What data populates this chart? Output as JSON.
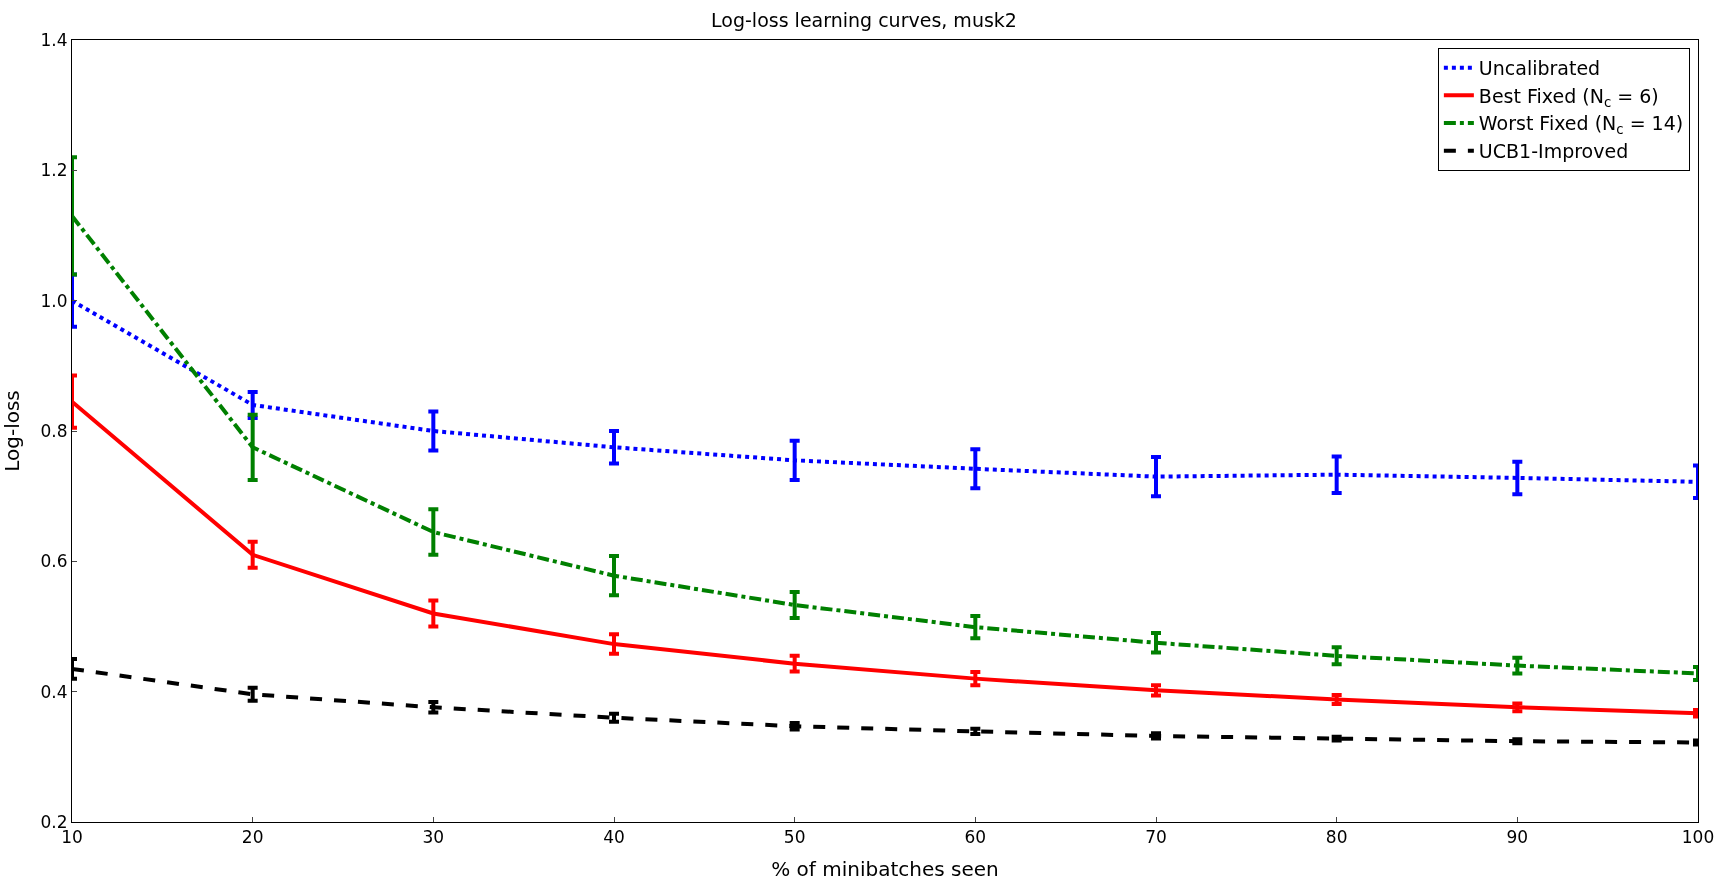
{
  "chart_data": {
    "type": "line",
    "title": "Log-loss learning curves, musk2",
    "xlabel": "% of minibatches seen",
    "ylabel": "Log-loss",
    "x": [
      10,
      20,
      30,
      40,
      50,
      60,
      70,
      80,
      90,
      100
    ],
    "xlim": [
      10,
      100
    ],
    "xticks": [
      10,
      20,
      30,
      40,
      50,
      60,
      70,
      80,
      90,
      100
    ],
    "ylim": [
      0.2,
      1.4
    ],
    "yticks": [
      0.2,
      0.4,
      0.6,
      0.8,
      {
        "value": 1,
        "label": "1.0"
      },
      1.2,
      1.4
    ],
    "grid": false,
    "legend": "top right",
    "series": [
      {
        "name": "Uncalibrated",
        "color": "#0000ff",
        "line_style": "dotted",
        "values": [
          1.0,
          0.84,
          0.8,
          0.775,
          0.755,
          0.742,
          0.73,
          0.733,
          0.728,
          0.722
        ],
        "errors": [
          0.04,
          0.02,
          0.03,
          0.025,
          0.03,
          0.03,
          0.03,
          0.028,
          0.025,
          0.025
        ]
      },
      {
        "name": "Best Fixed (N$_{c}$ = 6)",
        "color": "#ff0000",
        "line_style": "solid",
        "values": [
          0.845,
          0.61,
          0.52,
          0.473,
          0.443,
          0.42,
          0.402,
          0.388,
          0.376,
          0.367
        ],
        "errors": [
          0.04,
          0.02,
          0.02,
          0.015,
          0.012,
          0.01,
          0.008,
          0.007,
          0.006,
          0.005
        ]
      },
      {
        "name": "Worst Fixed (N$_{c}$ = 14)",
        "color": "#008000",
        "line_style": "dashdot",
        "values": [
          1.13,
          0.775,
          0.645,
          0.578,
          0.533,
          0.499,
          0.475,
          0.455,
          0.44,
          0.428
        ],
        "errors": [
          0.09,
          0.05,
          0.035,
          0.03,
          0.02,
          0.017,
          0.015,
          0.013,
          0.012,
          0.01
        ]
      },
      {
        "name": "UCB1-Improved",
        "color": "#000000",
        "line_style": "dashed",
        "values": [
          0.435,
          0.396,
          0.376,
          0.36,
          0.347,
          0.339,
          0.332,
          0.328,
          0.324,
          0.322
        ],
        "errors": [
          0.015,
          0.01,
          0.008,
          0.006,
          0.005,
          0.004,
          0.004,
          0.003,
          0.003,
          0.003
        ]
      }
    ]
  }
}
